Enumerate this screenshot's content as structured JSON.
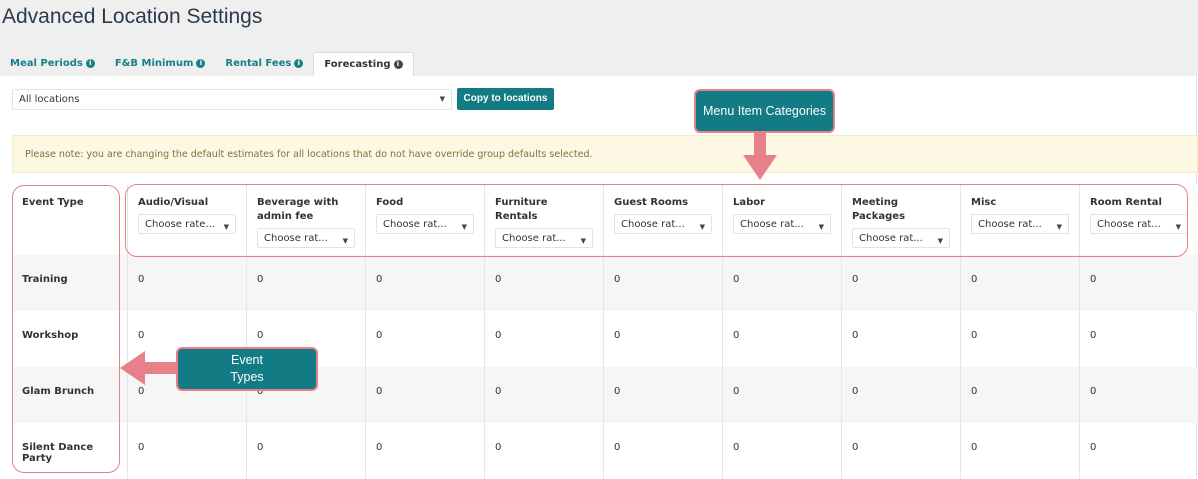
{
  "title": "Advanced Location Settings",
  "tabs": [
    {
      "label": "Meal Periods"
    },
    {
      "label": "F&B Minimum"
    },
    {
      "label": "Rental Fees"
    },
    {
      "label": "Forecasting",
      "active": true
    }
  ],
  "location_select": {
    "value": "All locations"
  },
  "copy_button": "Copy to locations",
  "note": "Please note: you are changing the default estimates for all locations that do not have override group defaults selected.",
  "table": {
    "first_header": "Event Type",
    "columns": [
      {
        "label": "Audio/Visual",
        "select": "Choose rate..."
      },
      {
        "label": "Beverage with admin fee",
        "select": "Choose rat..."
      },
      {
        "label": "Food",
        "select": "Choose rat..."
      },
      {
        "label": "Furniture Rentals",
        "select": "Choose rat..."
      },
      {
        "label": "Guest Rooms",
        "select": "Choose rat..."
      },
      {
        "label": "Labor",
        "select": "Choose rat..."
      },
      {
        "label": "Meeting Packages",
        "select": "Choose rat..."
      },
      {
        "label": "Misc",
        "select": "Choose rat..."
      },
      {
        "label": "Room Rental",
        "select": "Choose rat..."
      }
    ],
    "rows": [
      {
        "event": "Training",
        "values": [
          "0",
          "0",
          "0",
          "0",
          "0",
          "0",
          "0",
          "0",
          "0"
        ]
      },
      {
        "event": "Workshop",
        "values": [
          "0",
          "0",
          "0",
          "0",
          "0",
          "0",
          "0",
          "0",
          "0"
        ]
      },
      {
        "event": "Glam Brunch",
        "values": [
          "0",
          "0",
          "0",
          "0",
          "0",
          "0",
          "0",
          "0",
          "0"
        ]
      },
      {
        "event": "Silent Dance Party",
        "values": [
          "0",
          "0",
          "0",
          "0",
          "0",
          "0",
          "0",
          "0",
          "0"
        ]
      }
    ]
  },
  "annotations": {
    "menu_items": "Menu Item Categories",
    "event_types": "Event Types"
  },
  "colors": {
    "accent": "#127b84",
    "annotation": "#e8808a",
    "note_bg": "#fcf8e3"
  }
}
